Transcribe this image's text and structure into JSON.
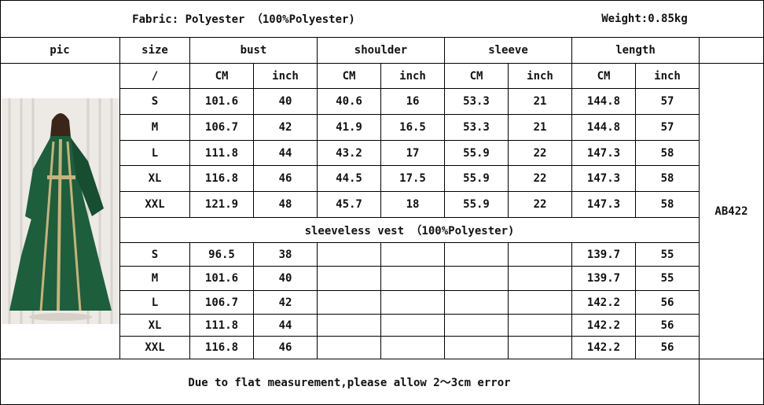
{
  "header": {
    "fabric": "Fabric: Polyester （100%Polyester)",
    "weight": "Weight:0.85kg"
  },
  "columns": {
    "pic": "pic",
    "size": "size",
    "bust": "bust",
    "shoulder": "shoulder",
    "sleeve": "sleeve",
    "length": "length"
  },
  "units": [
    "/",
    "CM",
    "inch",
    "CM",
    "inch",
    "CM",
    "inch",
    "CM",
    "inch"
  ],
  "dress_rows": [
    [
      "S",
      "101.6",
      "40",
      "40.6",
      "16",
      "53.3",
      "21",
      "144.8",
      "57"
    ],
    [
      "M",
      "106.7",
      "42",
      "41.9",
      "16.5",
      "53.3",
      "21",
      "144.8",
      "57"
    ],
    [
      "L",
      "111.8",
      "44",
      "43.2",
      "17",
      "55.9",
      "22",
      "147.3",
      "58"
    ],
    [
      "XL",
      "116.8",
      "46",
      "44.5",
      "17.5",
      "55.9",
      "22",
      "147.3",
      "58"
    ],
    [
      "XXL",
      "121.9",
      "48",
      "45.7",
      "18",
      "55.9",
      "22",
      "147.3",
      "58"
    ]
  ],
  "vest_title": "sleeveless vest （100%Polyester)",
  "vest_rows": [
    [
      "S",
      "96.5",
      "38",
      "",
      "",
      "",
      "",
      "139.7",
      "55"
    ],
    [
      "M",
      "101.6",
      "40",
      "",
      "",
      "",
      "",
      "139.7",
      "55"
    ],
    [
      "L",
      "106.7",
      "42",
      "",
      "",
      "",
      "",
      "142.2",
      "56"
    ],
    [
      "XL",
      "111.8",
      "44",
      "",
      "",
      "",
      "",
      "142.2",
      "56"
    ],
    [
      "XXL",
      "116.8",
      "46",
      "",
      "",
      "",
      "",
      "142.2",
      "56"
    ]
  ],
  "model_code": "AB422",
  "footer": "Due to flat measurement,please allow 2～3cm error",
  "colors": {
    "dress": "#1d5e3c",
    "trim": "#c9b27a"
  }
}
